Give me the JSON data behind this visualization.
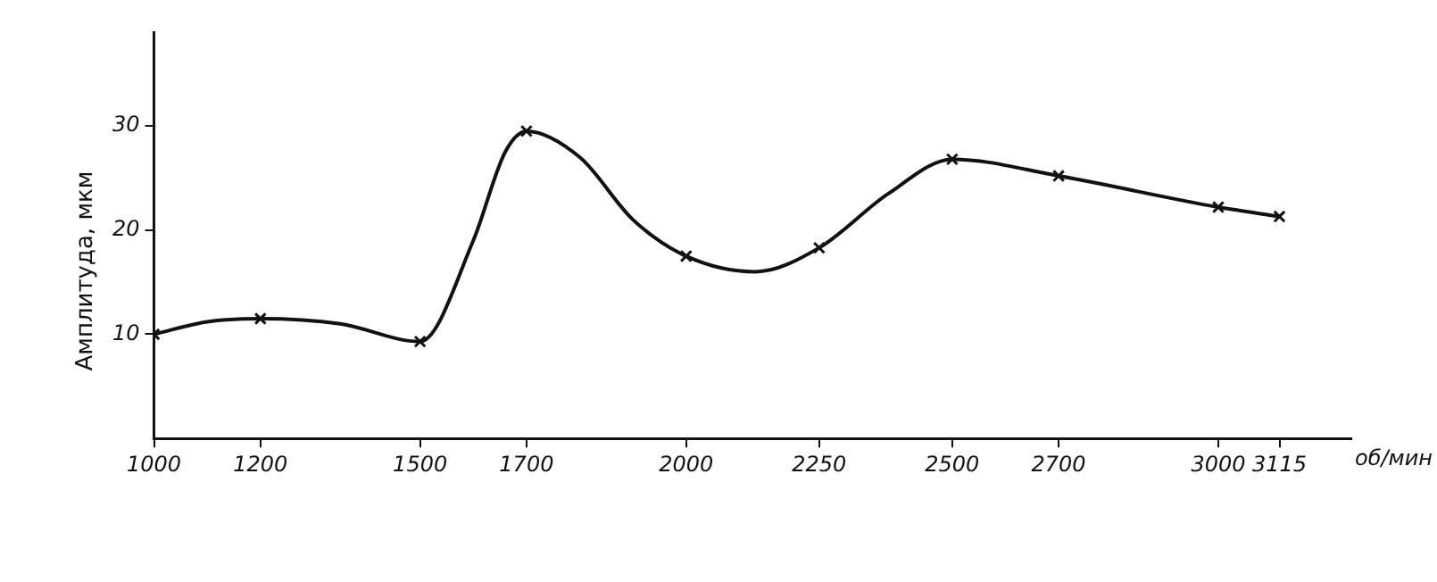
{
  "chart_data": {
    "type": "line",
    "ylabel": "Амплитуда, мкм",
    "xlabel": "об/мин",
    "xlim": [
      1000,
      3250
    ],
    "xticks": [
      1000,
      1200,
      1500,
      1700,
      2000,
      2250,
      2500,
      2700,
      3000,
      3115
    ],
    "ylim": [
      0,
      39
    ],
    "yticks": [
      10,
      20,
      30
    ],
    "grid": false,
    "legend": false,
    "series": [
      {
        "color": "#111111",
        "marker": "none",
        "line_style": "solid",
        "x": [
          1000,
          1100,
          1200,
          1350,
          1500,
          1600,
          1660,
          1700,
          1800,
          1900,
          2000,
          2130,
          2250,
          2380,
          2500,
          2700,
          3000,
          3115
        ],
        "values": [
          10,
          11.2,
          11.5,
          11,
          9.3,
          19,
          27.5,
          29.5,
          27,
          21,
          17.5,
          16,
          18.3,
          23.5,
          26.8,
          25.2,
          22.2,
          21.3
        ]
      },
      {
        "type": "scatter",
        "color": "#111111",
        "marker": "cross",
        "x": [
          1000,
          1200,
          1500,
          1700,
          2000,
          2250,
          2500,
          2700,
          3000,
          3115
        ],
        "values": [
          10,
          11.5,
          9.3,
          29.5,
          17.5,
          18.3,
          26.8,
          25.2,
          22.2,
          21.3
        ]
      }
    ]
  }
}
